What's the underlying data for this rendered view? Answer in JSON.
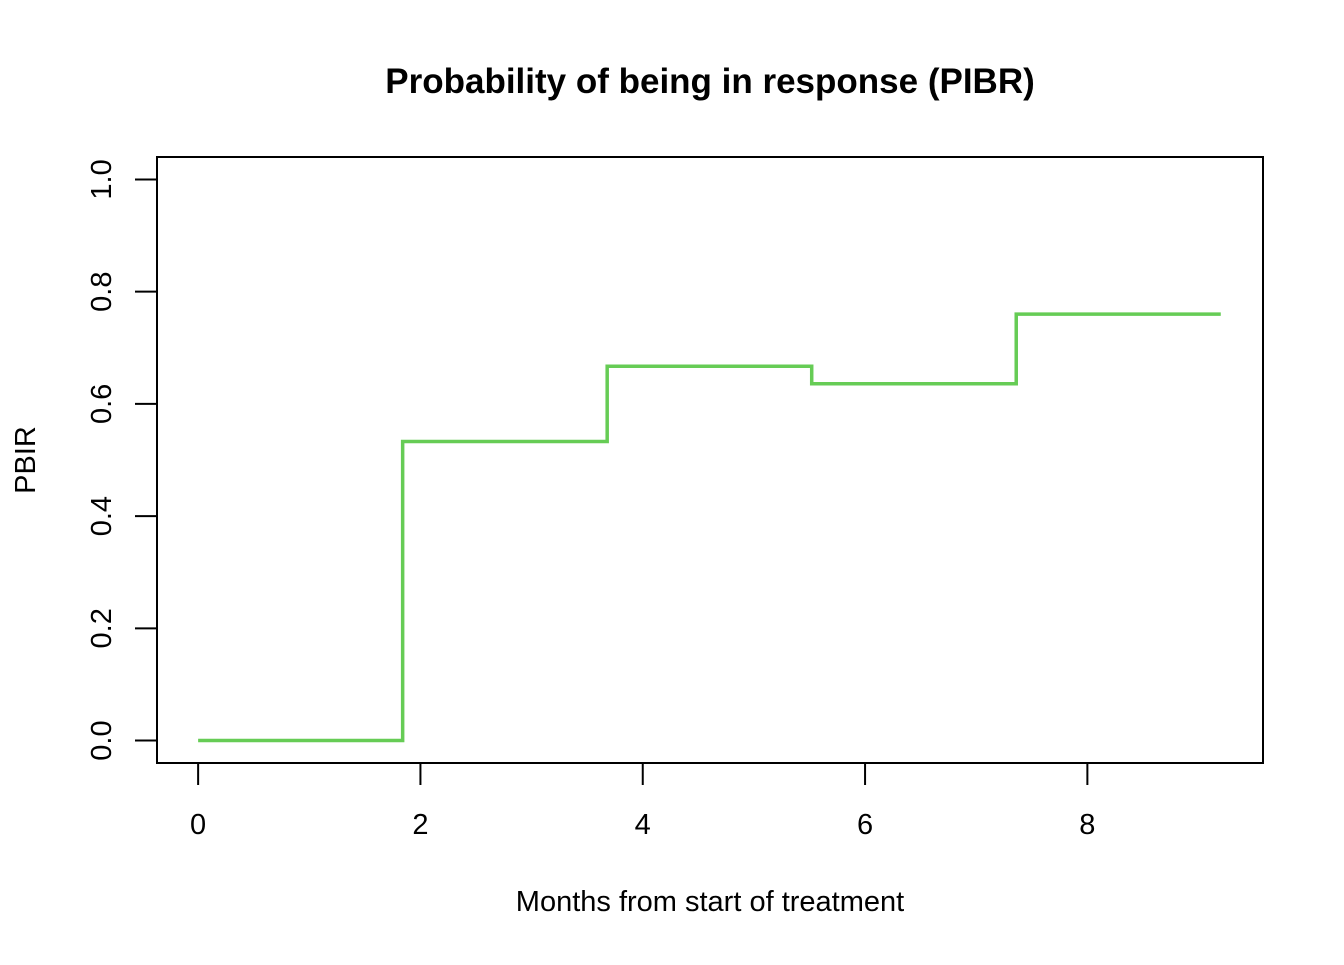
{
  "chart_data": {
    "type": "line",
    "step": true,
    "title": "Probability of being in response (PIBR)",
    "xlabel": "Months from start of treatment",
    "ylabel": "PBIR",
    "xlim": [
      -0.37,
      9.58
    ],
    "ylim": [
      -0.04,
      1.04
    ],
    "xticks": [
      0,
      2,
      4,
      6,
      8
    ],
    "xtick_labels": [
      "0",
      "2",
      "4",
      "6",
      "8"
    ],
    "yticks": [
      0,
      0.2,
      0.4,
      0.6,
      0.8,
      1
    ],
    "ytick_labels": [
      "0.0",
      "0.2",
      "0.4",
      "0.6",
      "0.8",
      "1.0"
    ],
    "grid": false,
    "series": [
      {
        "color": "#66cc55",
        "x": [
          0,
          1.84,
          3.68,
          5.52,
          7.36,
          9.2
        ],
        "y": [
          0,
          0.533,
          0.667,
          0.636,
          0.76,
          0.76
        ]
      }
    ]
  }
}
